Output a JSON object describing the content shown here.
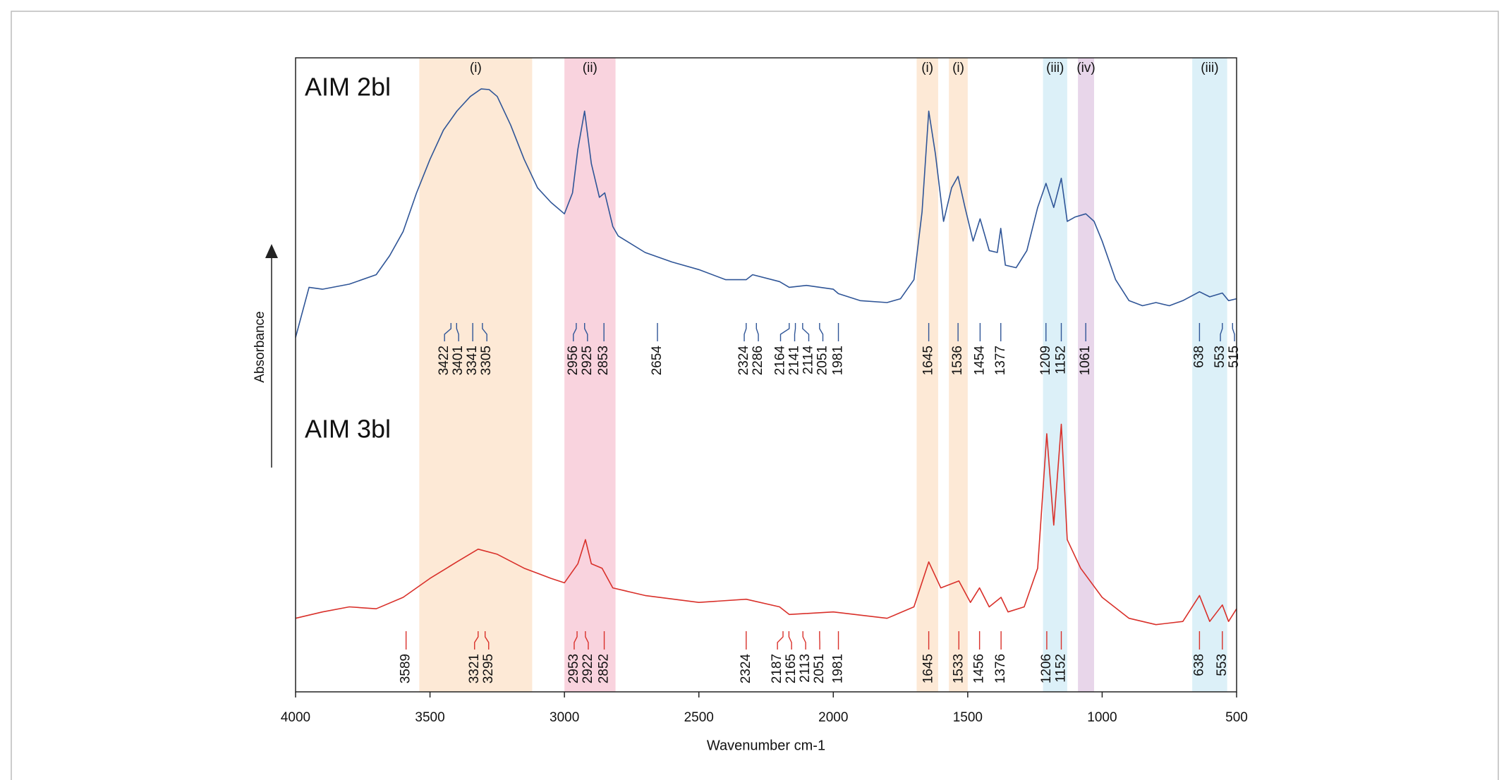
{
  "chart_data": {
    "type": "line",
    "x_label": "Wavenumber cm-1",
    "y_label": "Absorbance",
    "xlim": [
      4000,
      500
    ],
    "ylim": [
      0,
      100
    ],
    "xticks": [
      4000,
      3500,
      3000,
      2500,
      2000,
      1500,
      1000,
      500
    ],
    "bands": [
      {
        "label": "(i)",
        "from": 3540,
        "to": 3120,
        "color": "#fde9d6"
      },
      {
        "label": "(ii)",
        "from": 3000,
        "to": 2810,
        "color": "#f9d3de"
      },
      {
        "label": "(i)",
        "from": 1690,
        "to": 1610,
        "color": "#fde9d6"
      },
      {
        "label": "(i)",
        "from": 1570,
        "to": 1500,
        "color": "#fde9d6"
      },
      {
        "label": "(iii)",
        "from": 1220,
        "to": 1130,
        "color": "#dcf0f8"
      },
      {
        "label": "(iv)",
        "from": 1090,
        "to": 1030,
        "color": "#e8d6ea"
      },
      {
        "label": "(iii)",
        "from": 665,
        "to": 535,
        "color": "#dcf0f8"
      }
    ],
    "series": [
      {
        "name": "AIM 2bl",
        "color": "#2f5597",
        "x": [
          4000,
          3950,
          3900,
          3800,
          3700,
          3650,
          3600,
          3550,
          3500,
          3450,
          3400,
          3350,
          3310,
          3280,
          3250,
          3200,
          3150,
          3100,
          3050,
          3000,
          2970,
          2950,
          2925,
          2900,
          2870,
          2850,
          2820,
          2800,
          2700,
          2600,
          2500,
          2400,
          2324,
          2300,
          2200,
          2164,
          2100,
          2000,
          1981,
          1900,
          1800,
          1750,
          1700,
          1670,
          1645,
          1620,
          1590,
          1560,
          1536,
          1510,
          1480,
          1454,
          1420,
          1390,
          1377,
          1360,
          1320,
          1280,
          1240,
          1209,
          1180,
          1152,
          1130,
          1100,
          1061,
          1030,
          1000,
          950,
          900,
          850,
          800,
          750,
          700,
          638,
          600,
          553,
          530,
          500
        ],
        "values": [
          55.9,
          63.8,
          63.5,
          64.3,
          65.8,
          68.8,
          72.6,
          78.7,
          84.0,
          88.6,
          91.6,
          93.9,
          95.1,
          95.0,
          93.9,
          89.4,
          84.0,
          79.5,
          77.2,
          75.4,
          78.7,
          85.6,
          91.6,
          83.3,
          78.0,
          78.7,
          73.4,
          71.9,
          69.3,
          67.8,
          66.6,
          65.0,
          65.0,
          65.8,
          64.7,
          63.8,
          64.1,
          63.5,
          62.8,
          61.7,
          61.4,
          62.0,
          65.0,
          75.7,
          91.6,
          84.8,
          74.2,
          79.5,
          81.3,
          76.4,
          71.1,
          74.6,
          69.6,
          69.3,
          73.1,
          67.3,
          66.9,
          69.6,
          76.4,
          80.2,
          76.4,
          81.0,
          74.2,
          74.9,
          75.4,
          74.2,
          71.1,
          65.0,
          61.7,
          60.9,
          61.4,
          60.9,
          61.7,
          63.1,
          62.3,
          62.9,
          61.7,
          62.0
        ],
        "peaks": [
          3422,
          3401,
          3341,
          3305,
          2956,
          2925,
          2853,
          2654,
          2324,
          2286,
          2164,
          2141,
          2114,
          2051,
          1981,
          1645,
          1536,
          1454,
          1377,
          1209,
          1152,
          1061,
          638,
          553,
          515
        ]
      },
      {
        "name": "AIM 3bl",
        "color": "#d9302a",
        "x": [
          4000,
          3900,
          3800,
          3700,
          3600,
          3500,
          3400,
          3321,
          3250,
          3150,
          3050,
          3000,
          2950,
          2922,
          2900,
          2860,
          2820,
          2700,
          2500,
          2324,
          2200,
          2164,
          2000,
          1800,
          1700,
          1645,
          1600,
          1533,
          1490,
          1456,
          1420,
          1376,
          1350,
          1290,
          1240,
          1206,
          1180,
          1152,
          1130,
          1080,
          1000,
          900,
          800,
          700,
          638,
          600,
          553,
          530,
          500
        ],
        "values": [
          11.6,
          12.6,
          13.4,
          13.1,
          14.9,
          17.9,
          20.5,
          22.5,
          21.7,
          19.5,
          17.9,
          17.2,
          20.2,
          24.0,
          20.2,
          19.5,
          16.4,
          15.2,
          14.1,
          14.6,
          13.4,
          12.2,
          12.6,
          11.6,
          13.4,
          20.5,
          16.4,
          17.5,
          14.1,
          16.4,
          13.4,
          14.9,
          12.6,
          13.4,
          19.5,
          40.7,
          26.3,
          42.2,
          24.0,
          19.5,
          14.9,
          11.6,
          10.6,
          11.1,
          15.2,
          11.1,
          13.7,
          11.1,
          13.1
        ],
        "peaks": [
          3589,
          3321,
          3295,
          2953,
          2922,
          2852,
          2324,
          2187,
          2165,
          2113,
          2051,
          1981,
          1645,
          1533,
          1456,
          1376,
          1206,
          1152,
          638,
          553
        ]
      }
    ]
  }
}
